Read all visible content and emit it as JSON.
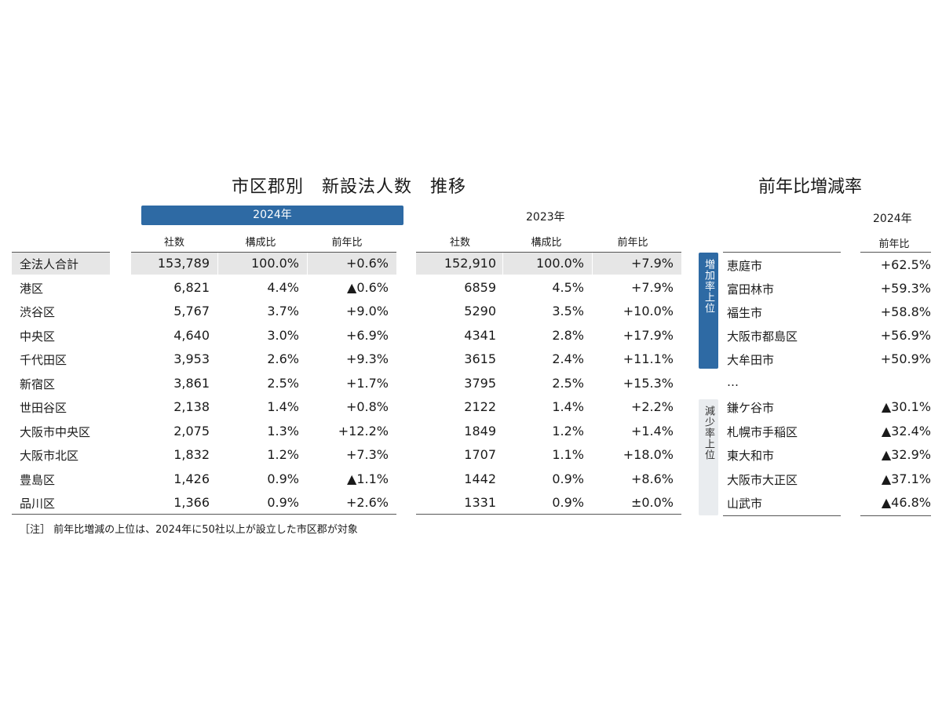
{
  "main_title": "市区郡別　新設法人数　推移",
  "side_title": "前年比増減率",
  "year_2024": "2024年",
  "year_2023": "2023年",
  "columns": [
    "社数",
    "構成比",
    "前年比"
  ],
  "side_column": "前年比",
  "rows": [
    {
      "label": "全法人合計",
      "v2024": [
        "153,789",
        "100.0%",
        "+0.6%"
      ],
      "v2023": [
        "152,910",
        "100.0%",
        "+7.9%"
      ]
    },
    {
      "label": "港区",
      "v2024": [
        "6,821",
        "4.4%",
        "▲0.6%"
      ],
      "v2023": [
        "6859",
        "4.5%",
        "+7.9%"
      ]
    },
    {
      "label": "渋谷区",
      "v2024": [
        "5,767",
        "3.7%",
        "+9.0%"
      ],
      "v2023": [
        "5290",
        "3.5%",
        "+10.0%"
      ]
    },
    {
      "label": "中央区",
      "v2024": [
        "4,640",
        "3.0%",
        "+6.9%"
      ],
      "v2023": [
        "4341",
        "2.8%",
        "+17.9%"
      ]
    },
    {
      "label": "千代田区",
      "v2024": [
        "3,953",
        "2.6%",
        "+9.3%"
      ],
      "v2023": [
        "3615",
        "2.4%",
        "+11.1%"
      ]
    },
    {
      "label": "新宿区",
      "v2024": [
        "3,861",
        "2.5%",
        "+1.7%"
      ],
      "v2023": [
        "3795",
        "2.5%",
        "+15.3%"
      ]
    },
    {
      "label": "世田谷区",
      "v2024": [
        "2,138",
        "1.4%",
        "+0.8%"
      ],
      "v2023": [
        "2122",
        "1.4%",
        "+2.2%"
      ]
    },
    {
      "label": "大阪市中央区",
      "v2024": [
        "2,075",
        "1.3%",
        "+12.2%"
      ],
      "v2023": [
        "1849",
        "1.2%",
        "+1.4%"
      ]
    },
    {
      "label": "大阪市北区",
      "v2024": [
        "1,832",
        "1.2%",
        "+7.3%"
      ],
      "v2023": [
        "1707",
        "1.1%",
        "+18.0%"
      ]
    },
    {
      "label": "豊島区",
      "v2024": [
        "1,426",
        "0.9%",
        "▲1.1%"
      ],
      "v2023": [
        "1442",
        "0.9%",
        "+8.6%"
      ]
    },
    {
      "label": "品川区",
      "v2024": [
        "1,366",
        "0.9%",
        "+2.6%"
      ],
      "v2023": [
        "1331",
        "0.9%",
        "±0.0%"
      ]
    }
  ],
  "increase_label": "増加率上位",
  "decrease_label": "減少率上位",
  "increase": [
    {
      "name": "恵庭市",
      "value": "+62.5%"
    },
    {
      "name": "富田林市",
      "value": "+59.3%"
    },
    {
      "name": "福生市",
      "value": "+58.8%"
    },
    {
      "name": "大阪市都島区",
      "value": "+56.9%"
    },
    {
      "name": "大牟田市",
      "value": "+50.9%"
    }
  ],
  "ellipsis": "…",
  "decrease": [
    {
      "name": "鎌ケ谷市",
      "value": "▲30.1%"
    },
    {
      "name": "札幌市手稲区",
      "value": "▲32.4%"
    },
    {
      "name": "東大和市",
      "value": "▲32.9%"
    },
    {
      "name": "大阪市大正区",
      "value": "▲37.1%"
    },
    {
      "name": "山武市",
      "value": "▲46.8%"
    }
  ],
  "note": "［注］ 前年比増減の上位は、2024年に50社以上が設立した市区郡が対象"
}
